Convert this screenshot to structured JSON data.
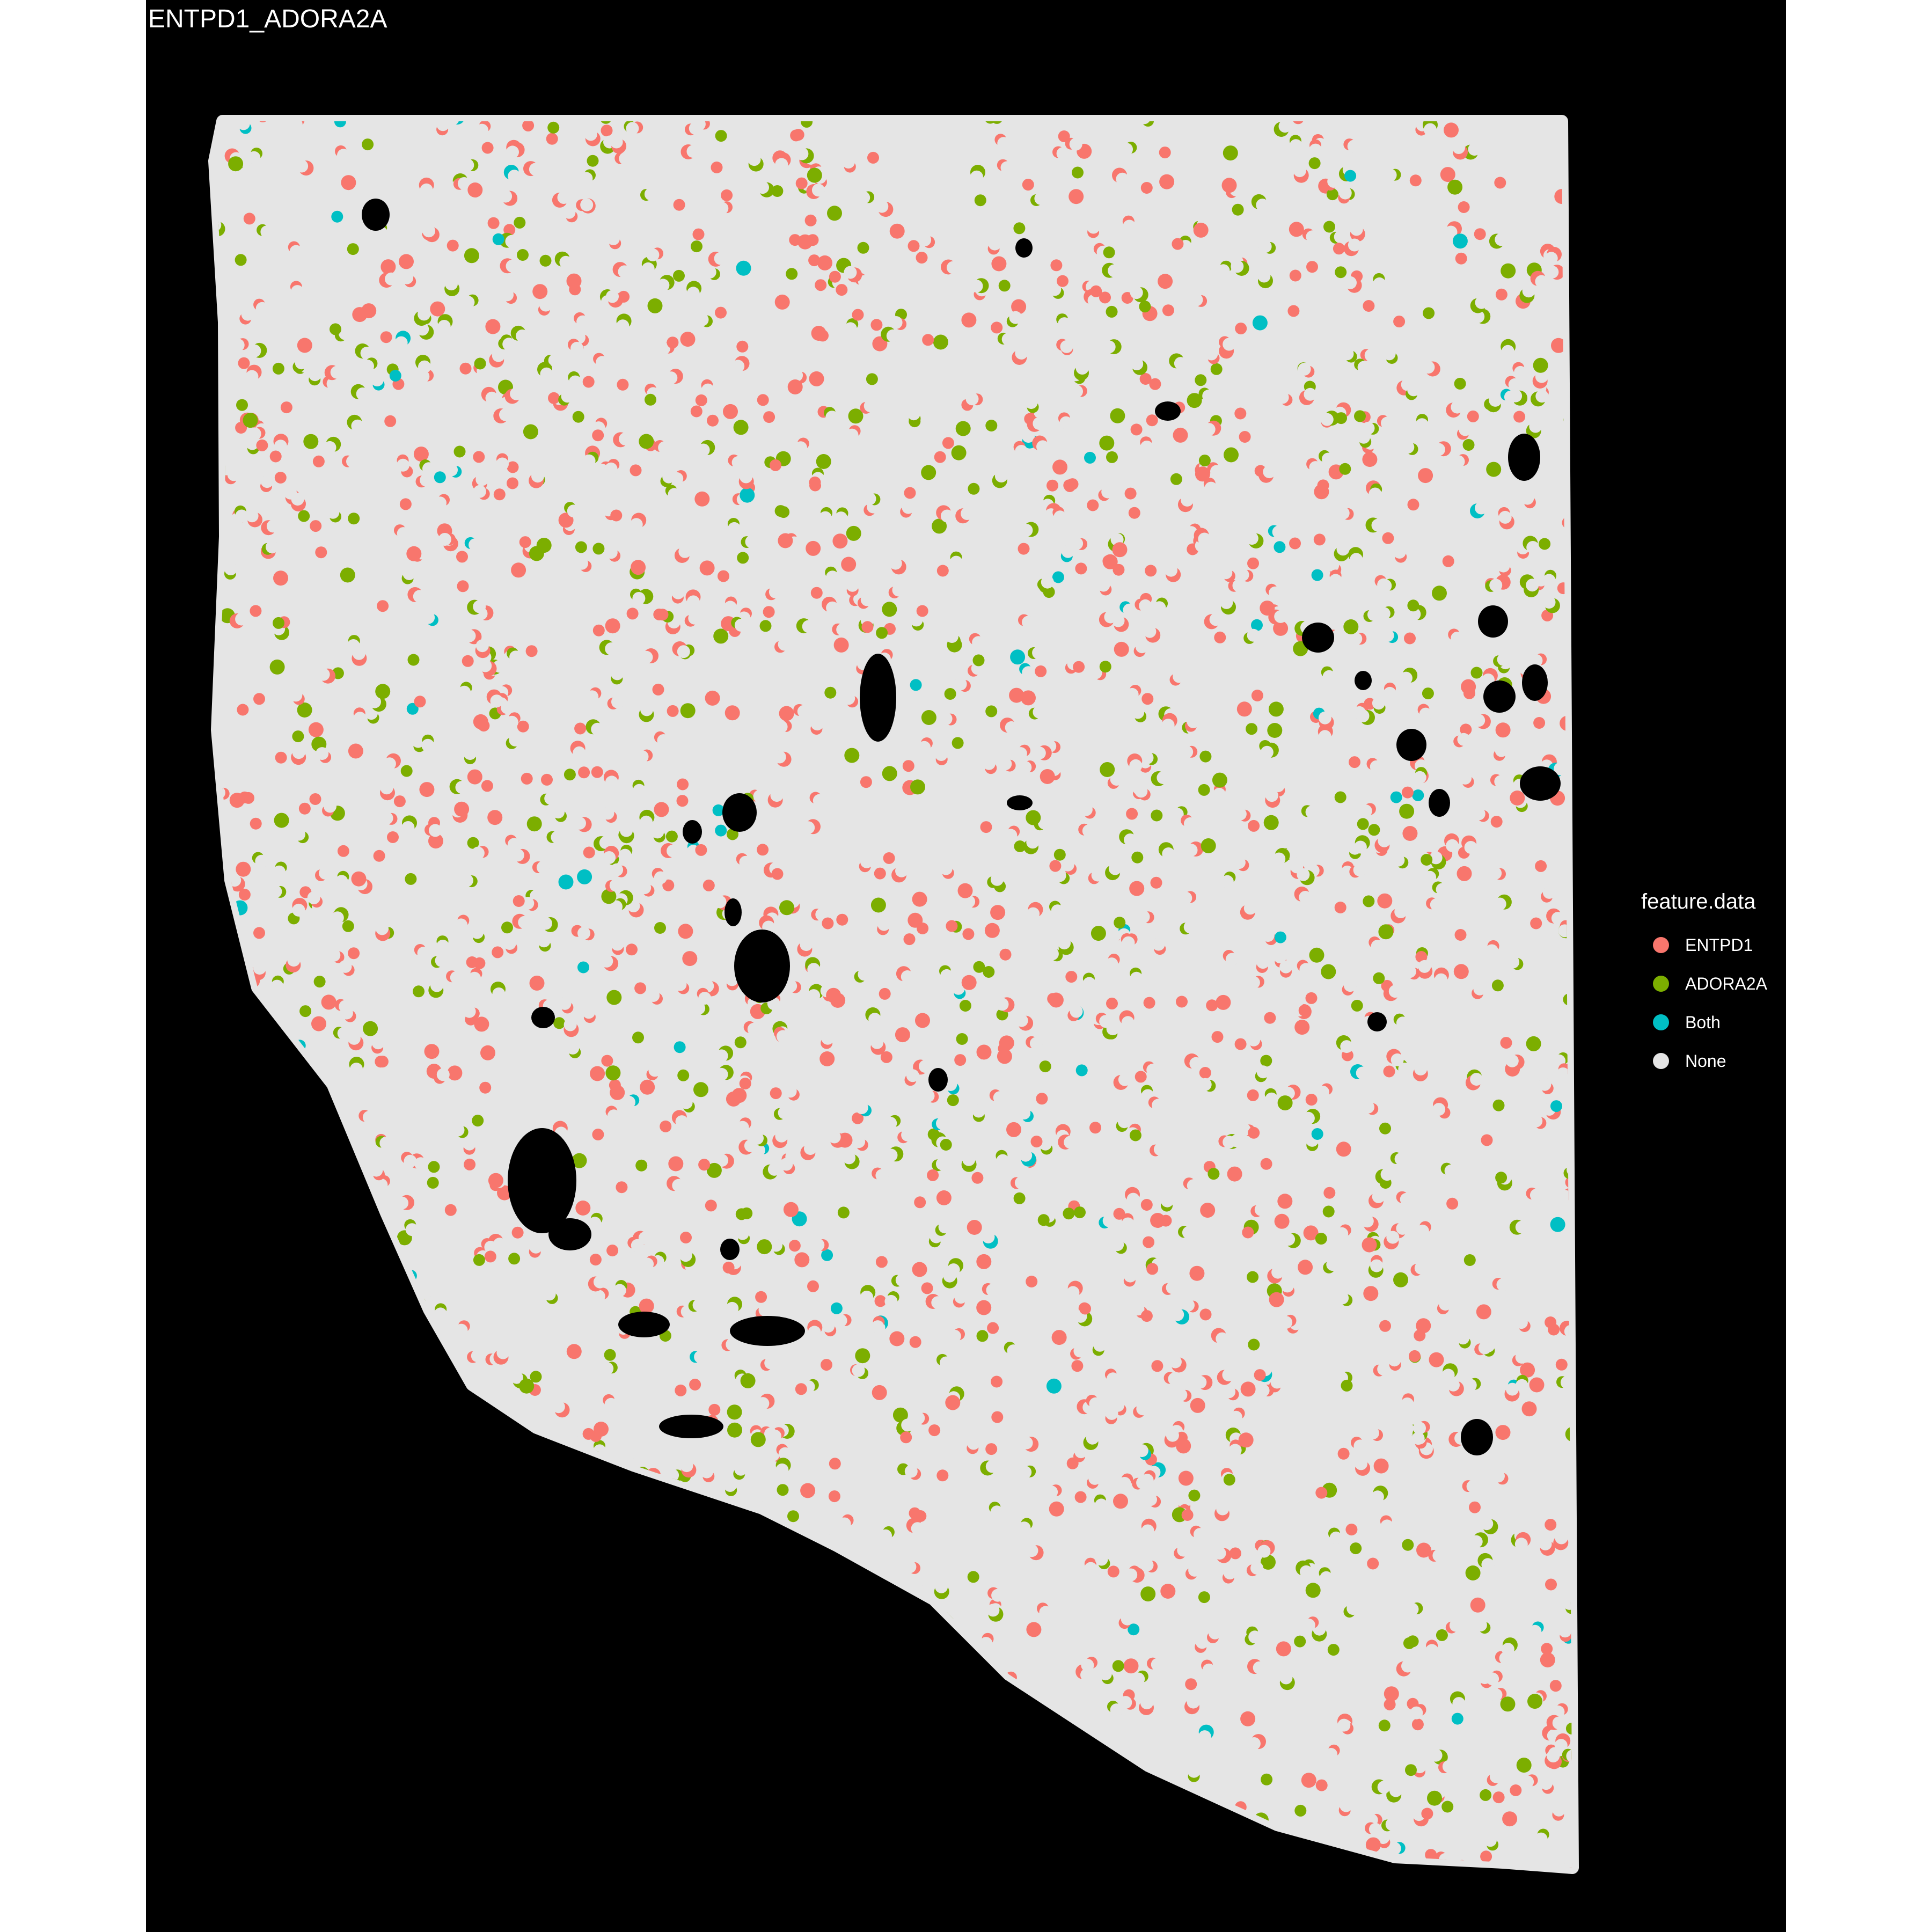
{
  "title": "ENTPD1_ADORA2A",
  "chart_data": {
    "type": "scatter",
    "title": "ENTPD1_ADORA2A",
    "xlabel": "",
    "ylabel": "",
    "axes_visible": false,
    "background": "#000000",
    "legend": {
      "title": "feature.data",
      "position": "right",
      "entries": [
        {
          "label": "ENTPD1",
          "color": "#F8766D"
        },
        {
          "label": "ADORA2A",
          "color": "#7CAE00"
        },
        {
          "label": "Both",
          "color": "#00BFC4"
        },
        {
          "label": "None",
          "color": "#E5E5E5"
        }
      ]
    },
    "categories": [
      "ENTPD1",
      "ADORA2A",
      "Both",
      "None"
    ],
    "approx_point_share": {
      "ENTPD1": 0.1,
      "ADORA2A": 0.055,
      "Both": 0.006,
      "None": 0.839
    }
  }
}
